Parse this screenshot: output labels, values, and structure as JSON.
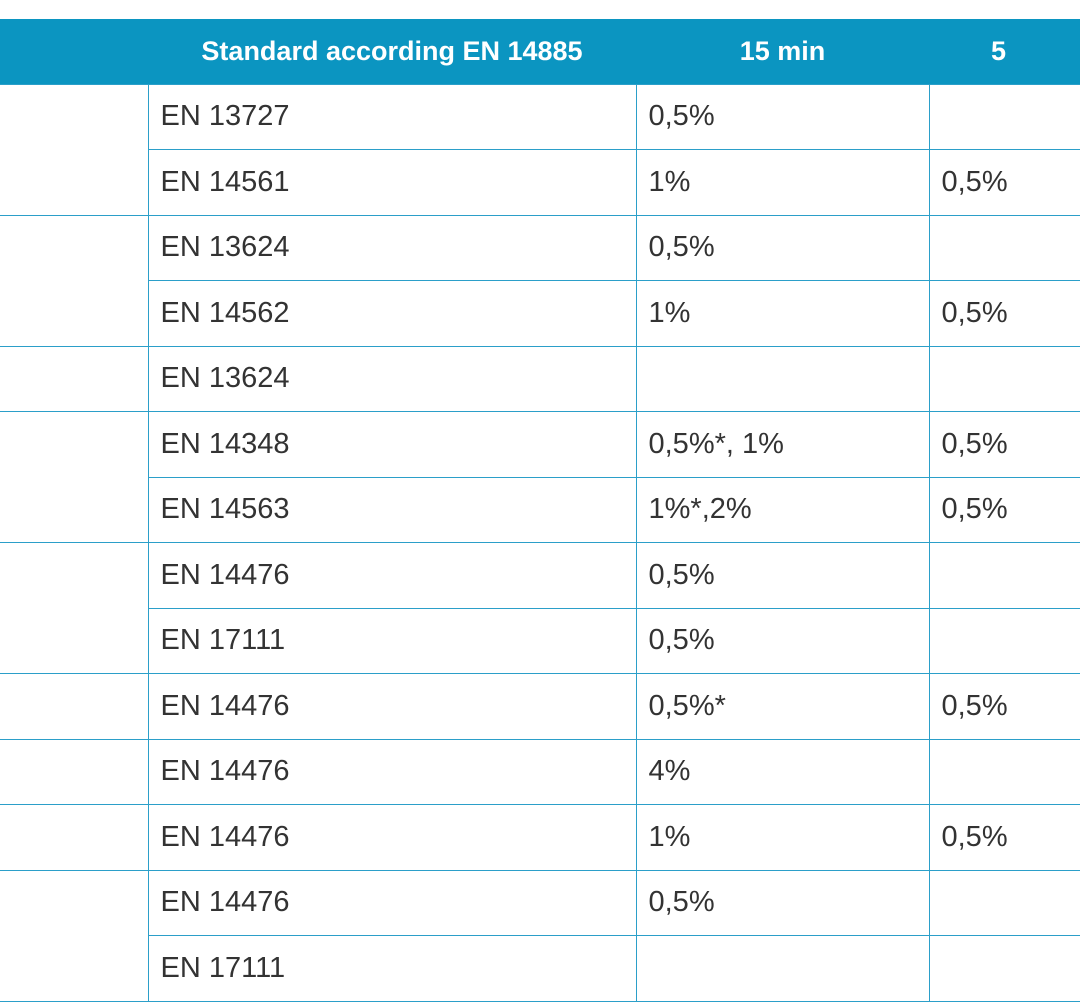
{
  "table": {
    "headers": [
      "",
      "Standard according EN 14885",
      "15 min",
      "5"
    ],
    "rows": [
      {
        "standard": "EN 13727",
        "min15": "0,5%",
        "next": ""
      },
      {
        "standard": "EN 14561",
        "min15": "1%",
        "next": "0,5%"
      },
      {
        "standard": "EN 13624",
        "min15": "0,5%",
        "next": ""
      },
      {
        "standard": "EN 14562",
        "min15": "1%",
        "next": "0,5%"
      },
      {
        "standard": "EN 13624",
        "min15": "",
        "next": ""
      },
      {
        "standard": "EN 14348",
        "min15": "0,5%*, 1%",
        "next": "0,5%"
      },
      {
        "standard": "EN 14563",
        "min15": "1%*,2%",
        "next": "0,5%"
      },
      {
        "standard": "EN 14476",
        "min15": "0,5%",
        "next": ""
      },
      {
        "standard": "EN 17111",
        "min15": "0,5%",
        "next": ""
      },
      {
        "standard": "EN 14476",
        "min15": "0,5%*",
        "next": "0,5%"
      },
      {
        "standard": "EN 14476",
        "min15": "4%",
        "next": ""
      },
      {
        "standard": "EN 14476",
        "min15": "1%",
        "next": "0,5%"
      },
      {
        "standard": "EN 14476",
        "min15": "0,5%",
        "next": ""
      },
      {
        "standard": "EN 17111",
        "min15": "",
        "next": ""
      }
    ]
  },
  "colors": {
    "header_bg": "#0b95c1",
    "header_text": "#ffffff",
    "border": "#2b9fc9",
    "cell_text": "#333333"
  }
}
